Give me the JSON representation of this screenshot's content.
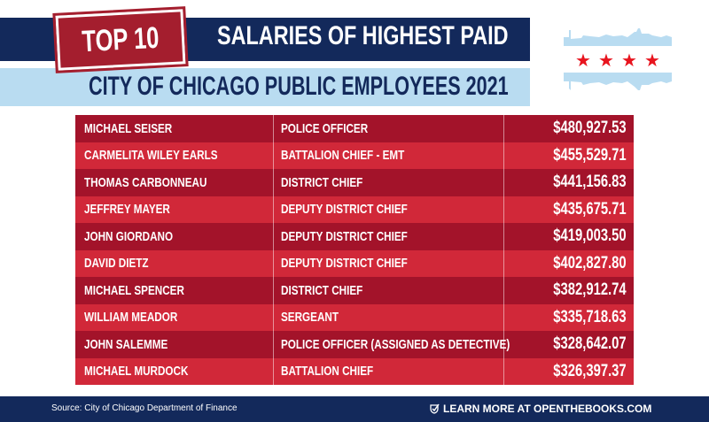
{
  "header": {
    "badge": "TOP 10",
    "title": "SALARIES OF HIGHEST PAID",
    "subtitle": "CITY OF CHICAGO PUBLIC EMPLOYEES 2021"
  },
  "colors": {
    "navy": "#13295b",
    "light_blue": "#b9dcf1",
    "red_dark": "#a3132a",
    "red_light": "#d12839",
    "star": "#e8141e"
  },
  "rows": [
    {
      "name": "MICHAEL SEISER",
      "title": "POLICE OFFICER",
      "salary": "$480,927.53"
    },
    {
      "name": "CARMELITA WILEY EARLS",
      "title": "BATTALION CHIEF - EMT",
      "salary": "$455,529.71"
    },
    {
      "name": "THOMAS CARBONNEAU",
      "title": "DISTRICT CHIEF",
      "salary": "$441,156.83"
    },
    {
      "name": "JEFFREY MAYER",
      "title": "DEPUTY DISTRICT CHIEF",
      "salary": "$435,675.71"
    },
    {
      "name": "JOHN GIORDANO",
      "title": "DEPUTY DISTRICT CHIEF",
      "salary": "$419,003.50"
    },
    {
      "name": "DAVID DIETZ",
      "title": "DEPUTY DISTRICT CHIEF",
      "salary": "$402,827.80"
    },
    {
      "name": "MICHAEL SPENCER",
      "title": "DISTRICT CHIEF",
      "salary": "$382,912.74"
    },
    {
      "name": "WILLIAM MEADOR",
      "title": "SERGEANT",
      "salary": "$335,718.63"
    },
    {
      "name": "JOHN SALEMME",
      "title": "POLICE OFFICER (ASSIGNED AS DETECTIVE)",
      "salary": "$328,642.07"
    },
    {
      "name": "MICHAEL MURDOCK",
      "title": "BATTALION CHIEF",
      "salary": "$326,397.37"
    }
  ],
  "footer": {
    "source": "Source: City of Chicago Department of Finance",
    "cta": "LEARN MORE AT OPENTHEBOOKS.COM"
  }
}
